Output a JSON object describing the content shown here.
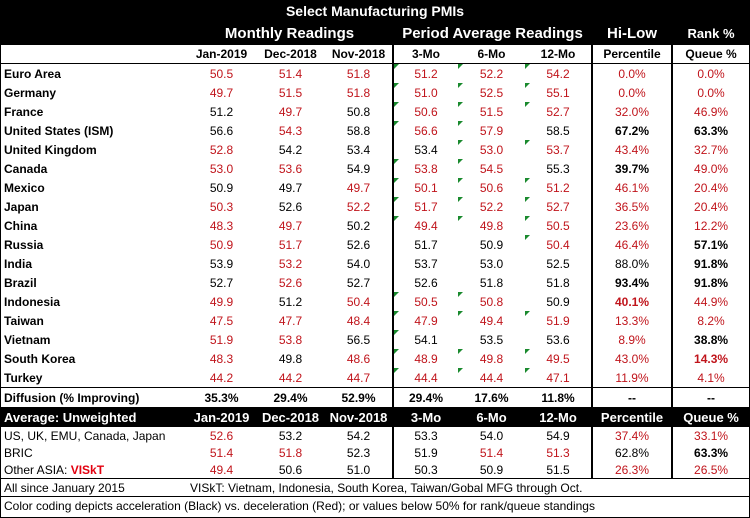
{
  "title": "Select Manufacturing PMIs",
  "groups": {
    "monthly": "Monthly Readings",
    "period": "Period Average Readings",
    "hilow": "Hi-Low",
    "rank": "Rank %"
  },
  "cols": {
    "m1": "Jan-2019",
    "m2": "Dec-2018",
    "m3": "Nov-2018",
    "p1": "3-Mo",
    "p2": "6-Mo",
    "p3": "12-Mo",
    "pct": "Percentile",
    "queue": "Queue %"
  },
  "rows": [
    {
      "name": "Euro Area",
      "m1": "50.5",
      "m2": "51.4",
      "m3": "51.8",
      "p1": "51.2",
      "p2": "52.2",
      "p3": "54.2",
      "pct": "0.0%",
      "queue": "0.0%"
    },
    {
      "name": " Germany",
      "m1": "49.7",
      "m2": "51.5",
      "m3": "51.8",
      "p1": "51.0",
      "p2": "52.5",
      "p3": "55.1",
      "pct": "0.0%",
      "queue": "0.0%"
    },
    {
      "name": " France",
      "m1": "51.2",
      "m2": "49.7",
      "m3": "50.8",
      "p1": "50.6",
      "p2": "51.5",
      "p3": "52.7",
      "pct": "32.0%",
      "queue": "46.9%"
    },
    {
      "name": "United States (ISM)",
      "m1": "56.6",
      "m2": "54.3",
      "m3": "58.8",
      "p1": "56.6",
      "p2": "57.9",
      "p3": "58.5",
      "pct": "67.2%",
      "queue": "63.3%"
    },
    {
      "name": "United Kingdom",
      "m1": "52.8",
      "m2": "54.2",
      "m3": "53.4",
      "p1": "53.4",
      "p2": "53.0",
      "p3": "53.7",
      "pct": "43.4%",
      "queue": "32.7%"
    },
    {
      "name": "Canada",
      "m1": "53.0",
      "m2": "53.6",
      "m3": "54.9",
      "p1": "53.8",
      "p2": "54.5",
      "p3": "55.3",
      "pct": "39.7%",
      "queue": "49.0%"
    },
    {
      "name": "Mexico",
      "m1": "50.9",
      "m2": "49.7",
      "m3": "49.7",
      "p1": "50.1",
      "p2": "50.6",
      "p3": "51.2",
      "pct": "46.1%",
      "queue": "20.4%"
    },
    {
      "name": "Japan",
      "m1": "50.3",
      "m2": "52.6",
      "m3": "52.2",
      "p1": "51.7",
      "p2": "52.2",
      "p3": "52.7",
      "pct": "36.5%",
      "queue": "20.4%"
    },
    {
      "name": "China",
      "m1": "48.3",
      "m2": "49.7",
      "m3": "50.2",
      "p1": "49.4",
      "p2": "49.8",
      "p3": "50.5",
      "pct": "23.6%",
      "queue": "12.2%"
    },
    {
      "name": "Russia",
      "m1": "50.9",
      "m2": "51.7",
      "m3": "52.6",
      "p1": "51.7",
      "p2": "50.9",
      "p3": "50.4",
      "pct": "46.4%",
      "queue": "57.1%"
    },
    {
      "name": "India",
      "m1": "53.9",
      "m2": "53.2",
      "m3": "54.0",
      "p1": "53.7",
      "p2": "53.0",
      "p3": "52.5",
      "pct": "88.0%",
      "queue": "91.8%"
    },
    {
      "name": "Brazil",
      "m1": "52.7",
      "m2": "52.6",
      "m3": "52.7",
      "p1": "52.6",
      "p2": "51.8",
      "p3": "51.8",
      "pct": "93.4%",
      "queue": "91.8%"
    },
    {
      "name": "Indonesia",
      "m1": "49.9",
      "m2": "51.2",
      "m3": "50.4",
      "p1": "50.5",
      "p2": "50.8",
      "p3": "50.9",
      "pct": "40.1%",
      "queue": "44.9%"
    },
    {
      "name": "Taiwan",
      "m1": "47.5",
      "m2": "47.7",
      "m3": "48.4",
      "p1": "47.9",
      "p2": "49.4",
      "p3": "51.9",
      "pct": "13.3%",
      "queue": "8.2%"
    },
    {
      "name": "Vietnam",
      "m1": "51.9",
      "m2": "53.8",
      "m3": "56.5",
      "p1": "54.1",
      "p2": "53.5",
      "p3": "53.6",
      "pct": "8.9%",
      "queue": "38.8%"
    },
    {
      "name": "South Korea",
      "m1": "48.3",
      "m2": "49.8",
      "m3": "48.6",
      "p1": "48.9",
      "p2": "49.8",
      "p3": "49.5",
      "pct": "43.0%",
      "queue": "14.3%"
    },
    {
      "name": "Turkey",
      "m1": "44.2",
      "m2": "44.2",
      "m3": "44.7",
      "p1": "44.4",
      "p2": "44.4",
      "p3": "47.1",
      "pct": "11.9%",
      "queue": "4.1%"
    }
  ],
  "diffusion": {
    "name": "Diffusion (% Improving)",
    "m1": "35.3%",
    "m2": "29.4%",
    "m3": "52.9%",
    "p1": "29.4%",
    "p2": "17.6%",
    "p3": "11.8%",
    "pct": "--",
    "queue": "--"
  },
  "average": {
    "label": "Average: Unweighted",
    "rows": [
      {
        "name": "US, UK, EMU, Canada, Japan",
        "m1": "52.6",
        "m2": "53.2",
        "m3": "54.2",
        "p1": "53.3",
        "p2": "54.0",
        "p3": "54.9",
        "pct": "37.4%",
        "queue": "33.1%"
      },
      {
        "name": "BRIC",
        "m1": "51.4",
        "m2": "51.8",
        "m3": "52.3",
        "p1": "51.9",
        "p2": "51.4",
        "p3": "51.3",
        "pct": "62.8%",
        "queue": "63.3%"
      },
      {
        "name": "Other ASIA: ",
        "visk": "VISkT",
        "m1": "49.4",
        "m2": "50.6",
        "m3": "51.0",
        "p1": "50.3",
        "p2": "50.9",
        "p3": "51.5",
        "pct": "26.3%",
        "queue": "26.5%"
      }
    ]
  },
  "notes": {
    "since": "All since January 2015",
    "visk": "VISkT: Vietnam, Indonesia, South Korea, Taiwan/Gobal MFG through Oct.",
    "color": "Color coding depicts acceleration (Black) vs. deceleration (Red); or values below 50% for rank/queue standings"
  }
}
